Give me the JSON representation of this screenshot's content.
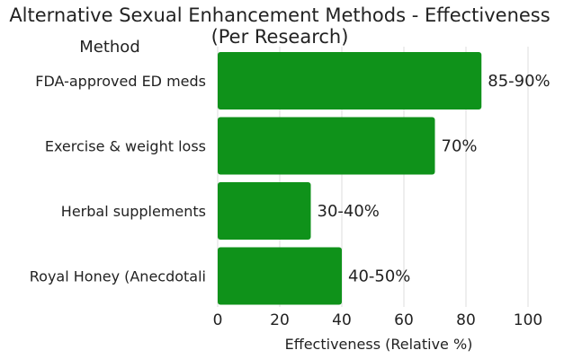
{
  "chart_data": {
    "type": "bar",
    "orientation": "horizontal",
    "title": "Alternative Sexual Enhancement Methods - Effectiveness",
    "subtitle": "(Per Research)",
    "category_header": "Method",
    "categories": [
      "FDA-approved ED meds",
      "Exercise & weight loss",
      "Herbal supplements",
      "Royal Honey (Anecdotali"
    ],
    "values": [
      85,
      70,
      30,
      40
    ],
    "data_labels": [
      "85-90%",
      "70%",
      "30-40%",
      "40-50%"
    ],
    "xlabel": "Effectiveness (Relative %)",
    "xlim": [
      0,
      100
    ],
    "xticks": [
      0,
      20,
      40,
      60,
      80,
      100
    ],
    "grid": true,
    "bar_color": "#0f921a"
  }
}
